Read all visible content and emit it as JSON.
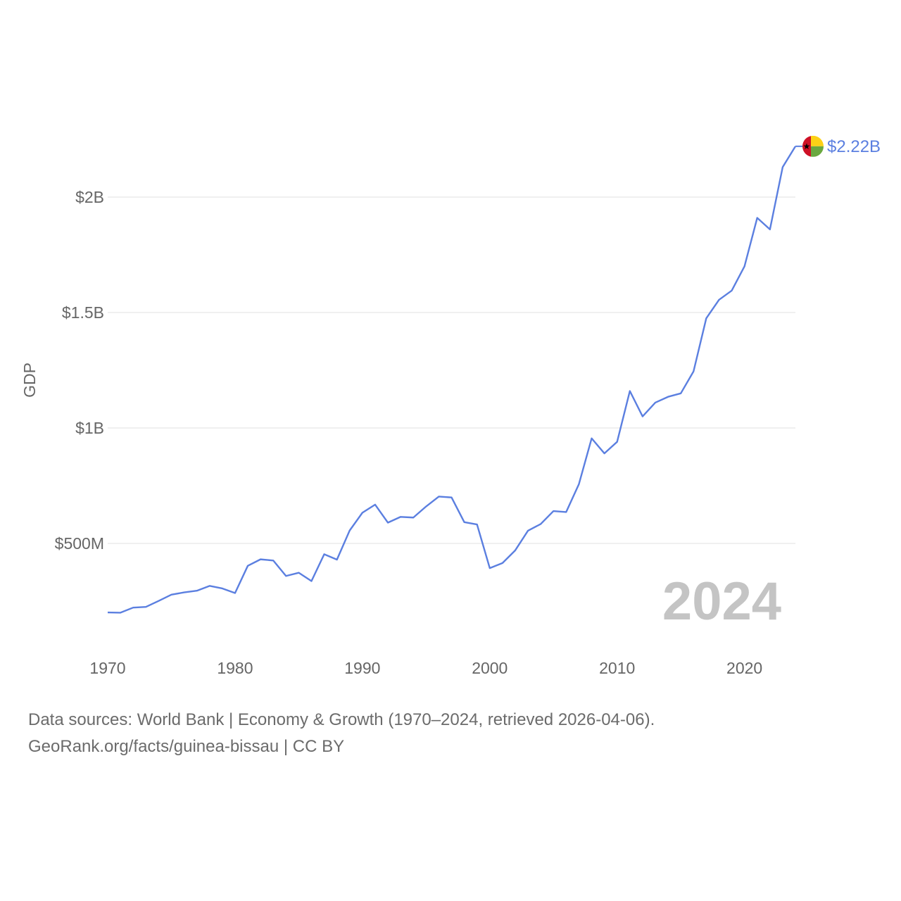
{
  "chart_data": {
    "type": "line",
    "title": "",
    "xlabel": "",
    "ylabel": "GDP",
    "xlim": [
      1970,
      2024
    ],
    "ylim": [
      0,
      2500000000
    ],
    "yticks": [
      {
        "value": 500000000,
        "label": "$500M"
      },
      {
        "value": 1000000000,
        "label": "$1B"
      },
      {
        "value": 1500000000,
        "label": "$1.5B"
      },
      {
        "value": 2000000000,
        "label": "$2B"
      }
    ],
    "xticks": [
      {
        "value": 1970,
        "label": "1970"
      },
      {
        "value": 1980,
        "label": "1980"
      },
      {
        "value": 1990,
        "label": "1990"
      },
      {
        "value": 2000,
        "label": "2000"
      },
      {
        "value": 2010,
        "label": "2010"
      },
      {
        "value": 2020,
        "label": "2020"
      }
    ],
    "grid": true,
    "color": "#5b7fe0",
    "current_year_label": "2024",
    "end_value_label": "$2.22B",
    "series": [
      {
        "name": "Guinea-Bissau",
        "x": [
          1970,
          1971,
          1972,
          1973,
          1974,
          1975,
          1976,
          1977,
          1978,
          1979,
          1980,
          1981,
          1982,
          1983,
          1984,
          1985,
          1986,
          1987,
          1988,
          1989,
          1990,
          1991,
          1992,
          1993,
          1994,
          1995,
          1996,
          1997,
          1998,
          1999,
          2000,
          2001,
          2002,
          2003,
          2004,
          2005,
          2006,
          2007,
          2008,
          2009,
          2010,
          2011,
          2012,
          2013,
          2014,
          2015,
          2016,
          2017,
          2018,
          2019,
          2020,
          2021,
          2022,
          2023,
          2024
        ],
        "values": [
          201000000,
          200000000,
          222000000,
          225000000,
          251000000,
          278000000,
          288000000,
          295000000,
          316000000,
          305000000,
          285000000,
          403000000,
          431000000,
          426000000,
          359000000,
          373000000,
          337000000,
          453000000,
          430000000,
          556000000,
          633000000,
          668000000,
          590000000,
          615000000,
          612000000,
          660000000,
          703000000,
          699000000,
          592000000,
          582000000,
          393000000,
          415000000,
          470000000,
          555000000,
          584000000,
          640000000,
          636000000,
          757000000,
          955000000,
          890000000,
          940000000,
          1160000000,
          1050000000,
          1110000000,
          1135000000,
          1150000000,
          1245000000,
          1475000000,
          1555000000,
          1595000000,
          1700000000,
          1910000000,
          1860000000,
          2130000000,
          2220000000
        ]
      }
    ]
  },
  "footer": {
    "line1": "Data sources: World Bank | Economy & Growth (1970–2024, retrieved 2026-04-06).",
    "line2": "GeoRank.org/facts/guinea-bissau | CC BY"
  }
}
